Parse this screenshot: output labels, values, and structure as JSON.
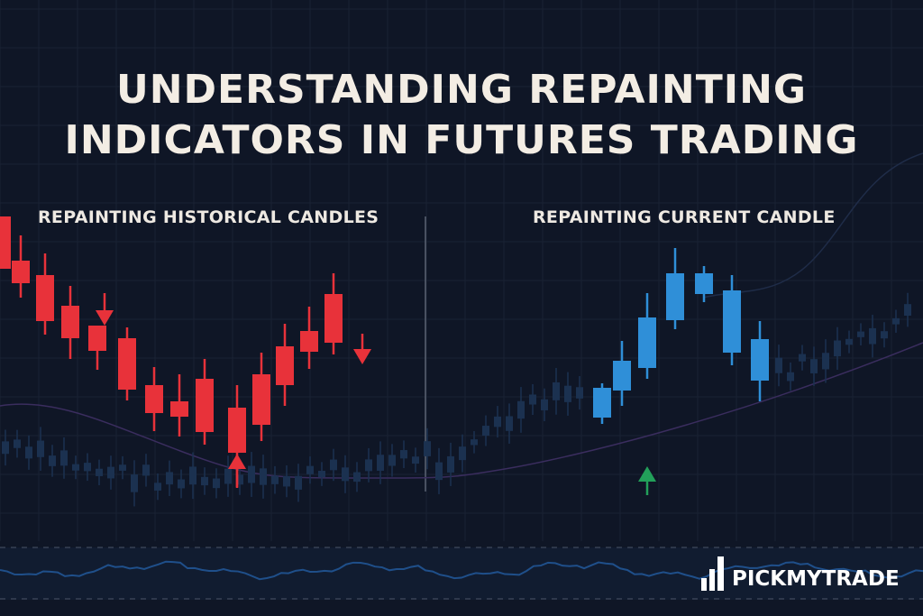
{
  "title": {
    "line1": "UNDERSTANDING REPAINTING",
    "line2": "INDICATORS IN FUTURES TRADING"
  },
  "left_panel": {
    "label": "REPAINTING HISTORICAL CANDLES",
    "candle_color": "#e8323a"
  },
  "right_panel": {
    "label": "REPAINTING CURRENT CANDLE",
    "candle_color": "#2f8fd8",
    "signal_color": "#22a05a"
  },
  "brand": {
    "name": "PICKMYTRADE",
    "icon": "bar-chart-logo-icon"
  },
  "colors": {
    "background": "#0f1626",
    "text": "#f3ede4"
  }
}
